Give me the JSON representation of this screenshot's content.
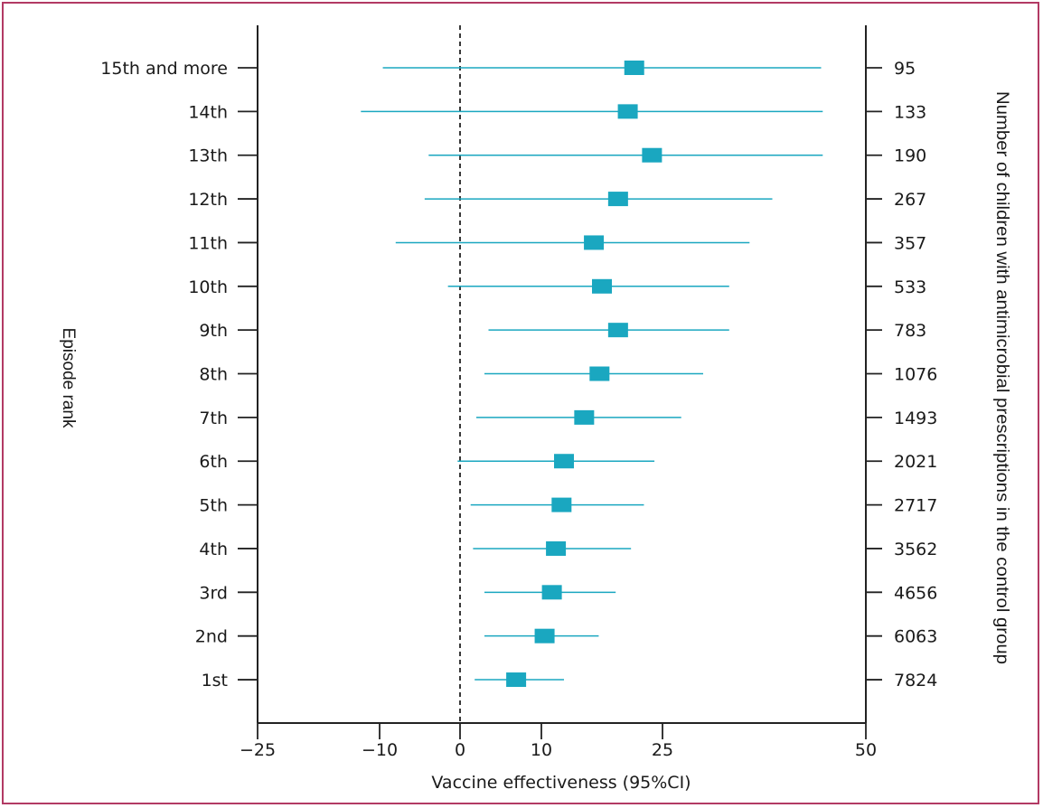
{
  "chart_data": {
    "type": "forest",
    "title": "",
    "xlabel": "Vaccine effectiveness (95%CI)",
    "ylabel": "Episode rank",
    "right_label": "Number of children with antimicrobial prescriptions in the control group",
    "x_ticks": [
      -25,
      -10,
      0,
      10,
      25,
      50
    ],
    "xlim": [
      -25,
      50
    ],
    "reference_line": 0,
    "marker_color": "#1aa7c0",
    "categories": [
      "15th and more",
      "14th",
      "13th",
      "12th",
      "11th",
      "10th",
      "9th",
      "8th",
      "7th",
      "6th",
      "5th",
      "4th",
      "3rd",
      "2nd",
      "1st"
    ],
    "estimates": [
      21.5,
      20.7,
      23.7,
      19.5,
      16.5,
      17.5,
      19.5,
      17.2,
      15.3,
      12.8,
      12.5,
      11.8,
      11.3,
      10.4,
      6.9
    ],
    "ci_lower": [
      -9.6,
      -12.3,
      -3.9,
      -4.4,
      -8.0,
      -1.5,
      3.5,
      3.0,
      2.0,
      -0.3,
      1.3,
      1.6,
      3.0,
      3.0,
      1.8
    ],
    "ci_upper": [
      44.5,
      44.7,
      44.7,
      38.5,
      35.7,
      33.2,
      33.2,
      30.0,
      27.3,
      24.0,
      22.7,
      21.1,
      19.2,
      17.1,
      12.8
    ],
    "counts": [
      "95",
      "133",
      "190",
      "267",
      "357",
      "533",
      "783",
      "1076",
      "1493",
      "2021",
      "2717",
      "3562",
      "4656",
      "6063",
      "7824"
    ]
  }
}
